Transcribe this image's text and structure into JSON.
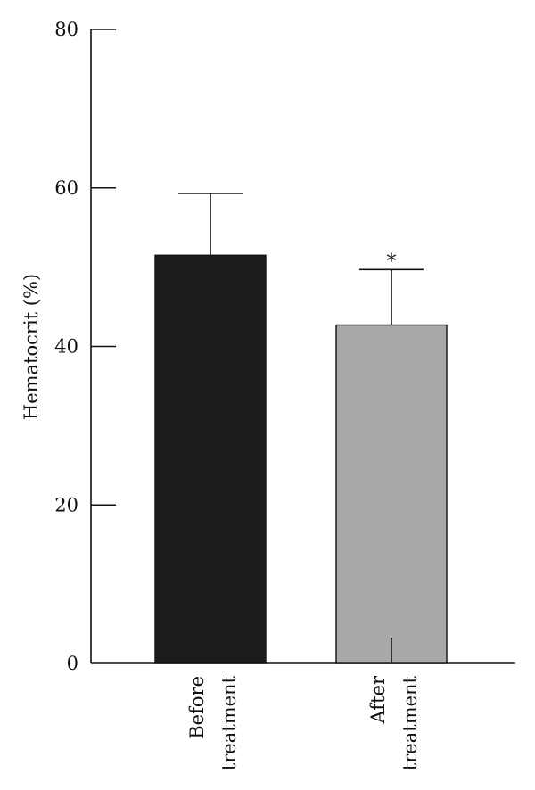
{
  "chart_data": {
    "type": "bar",
    "ylabel": "Hematocrit (%)",
    "xlabel": "",
    "ylim": [
      0,
      80
    ],
    "yticks": [
      0,
      20,
      40,
      60,
      80
    ],
    "grid": false,
    "categories": [
      {
        "lines": [
          "Before",
          "treatment"
        ]
      },
      {
        "lines": [
          "After",
          "treatment"
        ]
      }
    ],
    "values": [
      51.5,
      42.7
    ],
    "errors": [
      7.8,
      7.0
    ],
    "colors": [
      "#1c1c1c",
      "#a9a9a9"
    ],
    "annotations": [
      {
        "category_index": 1,
        "text": "*"
      }
    ]
  }
}
